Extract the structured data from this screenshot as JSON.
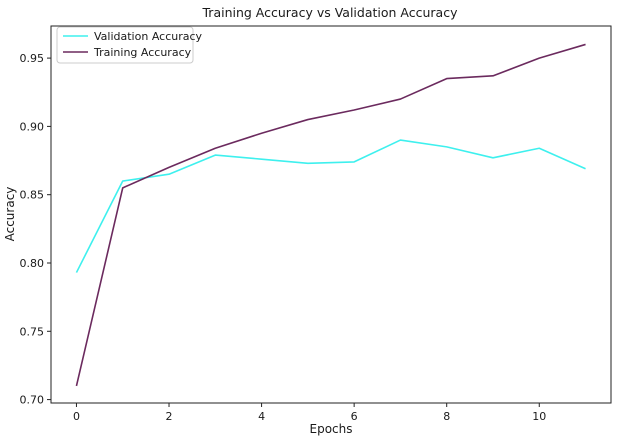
{
  "chart_data": {
    "type": "line",
    "title": "Training Accuracy vs Validation Accuracy",
    "xlabel": "Epochs",
    "ylabel": "Accuracy",
    "x": [
      0,
      1,
      2,
      3,
      4,
      5,
      6,
      7,
      8,
      9,
      10,
      11
    ],
    "xlim": [
      -0.55,
      11.55
    ],
    "ylim": [
      0.6975,
      0.9735
    ],
    "xticks": [
      0,
      2,
      4,
      6,
      8,
      10
    ],
    "yticks": [
      0.7,
      0.75,
      0.8,
      0.85,
      0.9,
      0.95
    ],
    "ytick_labels": [
      "0.70",
      "0.75",
      "0.80",
      "0.85",
      "0.90",
      "0.95"
    ],
    "grid": false,
    "legend_position": "top-left",
    "series": [
      {
        "name": "Validation Accuracy",
        "color": "#3ef0ee",
        "values": [
          0.793,
          0.86,
          0.865,
          0.879,
          0.876,
          0.873,
          0.874,
          0.89,
          0.885,
          0.877,
          0.884,
          0.869
        ]
      },
      {
        "name": "Training Accuracy",
        "color": "#6b2a5e",
        "values": [
          0.71,
          0.855,
          0.87,
          0.884,
          0.895,
          0.905,
          0.912,
          0.92,
          0.935,
          0.937,
          0.95,
          0.96
        ]
      }
    ]
  }
}
